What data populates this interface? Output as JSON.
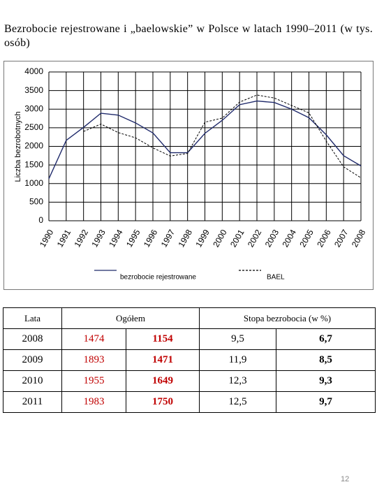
{
  "header": {
    "title": "Bezrobocie rejestrowane i „baelowskie” w Polsce w latach 1990–2011 (w tys. osób)"
  },
  "chart_data": {
    "type": "line",
    "y_label": "Liczba bezrobotnych",
    "categories": [
      "1990",
      "1991",
      "1992",
      "1993",
      "1994",
      "1995",
      "1996",
      "1997",
      "1998",
      "1999",
      "2000",
      "2001",
      "2002",
      "2003",
      "2004",
      "2005",
      "2006",
      "2007",
      "2008"
    ],
    "series": [
      {
        "name": "bezrobocie rejestrowane",
        "color": "#1f2a6b",
        "dashed": false,
        "values": [
          1130,
          2160,
          2510,
          2890,
          2840,
          2630,
          2360,
          1830,
          1830,
          2350,
          2700,
          3120,
          3220,
          3180,
          3000,
          2770,
          2310,
          1750,
          1474
        ]
      },
      {
        "name": "BAEL",
        "color": "#000000",
        "dashed": true,
        "values": [
          null,
          null,
          2400,
          2600,
          2370,
          2230,
          1960,
          1740,
          1810,
          2650,
          2760,
          3190,
          3380,
          3300,
          3100,
          2900,
          2140,
          1450,
          1154
        ]
      }
    ],
    "ylim": [
      0,
      4000
    ],
    "yticks": [
      0,
      500,
      1000,
      1500,
      2000,
      2500,
      3000,
      3500,
      4000
    ],
    "grid": true
  },
  "table": {
    "header": [
      "Lata",
      "Ogółem",
      "Stopa bezrobocia (w %)"
    ],
    "rows": [
      [
        "2008",
        "1474",
        "1154",
        "9,5",
        "6,7"
      ],
      [
        "2009",
        "1893",
        "1471",
        "11,9",
        "8,5"
      ],
      [
        "2010",
        "1955",
        "1649",
        "12,3",
        "9,3"
      ],
      [
        "2011",
        "1983",
        "1750",
        "12,5",
        "9,7"
      ]
    ]
  },
  "page_number": "12"
}
